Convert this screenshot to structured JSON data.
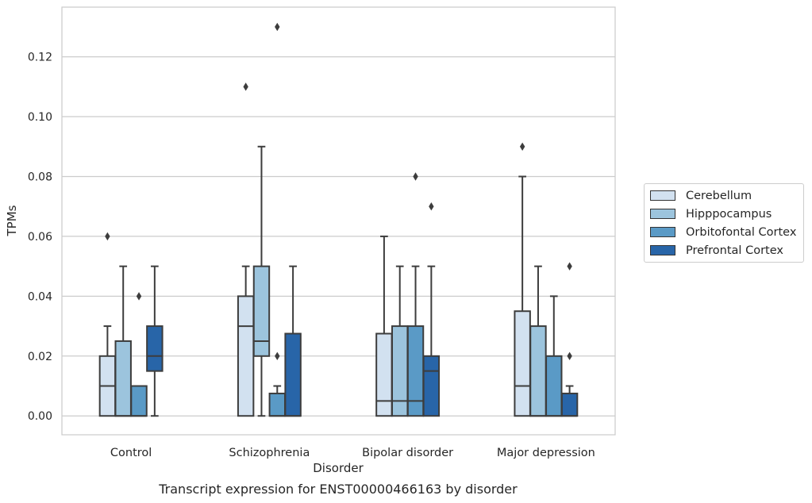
{
  "chart_data": {
    "type": "box",
    "title": "Transcript expression for ENST00000466163 by disorder",
    "xlabel": "Disorder",
    "ylabel": "TPMs",
    "ylim": [
      -0.0063,
      0.1366
    ],
    "yticks": [
      "0.00",
      "0.02",
      "0.04",
      "0.06",
      "0.08",
      "0.10",
      "0.12"
    ],
    "grid": true,
    "legend_placement": "right",
    "categories": [
      "Control",
      "Schizophrenia",
      "Bipolar disorder",
      "Major depression"
    ],
    "series": [
      {
        "name": "Cerebellum",
        "color": "#d2e1f0",
        "boxes": [
          {
            "q1": 0.0,
            "median": 0.01,
            "q3": 0.02,
            "whislo": 0.0,
            "whishi": 0.03,
            "fliers": [
              0.06
            ]
          },
          {
            "q1": 0.0,
            "median": 0.03,
            "q3": 0.04,
            "whislo": 0.0,
            "whishi": 0.05,
            "fliers": [
              0.11
            ]
          },
          {
            "q1": 0.0,
            "median": 0.005,
            "q3": 0.0275,
            "whislo": 0.0,
            "whishi": 0.06,
            "fliers": []
          },
          {
            "q1": 0.0,
            "median": 0.01,
            "q3": 0.035,
            "whislo": 0.0,
            "whishi": 0.08,
            "fliers": [
              0.09
            ]
          }
        ]
      },
      {
        "name": "Hipppocampus",
        "color": "#9cc4dd",
        "boxes": [
          {
            "q1": 0.0,
            "median": 0.0,
            "q3": 0.025,
            "whislo": 0.0,
            "whishi": 0.05,
            "fliers": []
          },
          {
            "q1": 0.02,
            "median": 0.025,
            "q3": 0.05,
            "whislo": 0.0,
            "whishi": 0.09,
            "fliers": []
          },
          {
            "q1": 0.0,
            "median": 0.005,
            "q3": 0.03,
            "whislo": 0.0,
            "whishi": 0.05,
            "fliers": []
          },
          {
            "q1": 0.0,
            "median": 0.0,
            "q3": 0.03,
            "whislo": 0.0,
            "whishi": 0.05,
            "fliers": []
          }
        ]
      },
      {
        "name": "Orbitofontal Cortex",
        "color": "#5a9ac6",
        "boxes": [
          {
            "q1": 0.0,
            "median": 0.0,
            "q3": 0.01,
            "whislo": 0.0,
            "whishi": 0.01,
            "fliers": [
              0.04
            ]
          },
          {
            "q1": 0.0,
            "median": 0.0,
            "q3": 0.0075,
            "whislo": 0.0,
            "whishi": 0.01,
            "fliers": [
              0.02,
              0.13
            ]
          },
          {
            "q1": 0.0,
            "median": 0.005,
            "q3": 0.03,
            "whislo": 0.0,
            "whishi": 0.05,
            "fliers": [
              0.08
            ]
          },
          {
            "q1": 0.0,
            "median": 0.0,
            "q3": 0.02,
            "whislo": 0.0,
            "whishi": 0.04,
            "fliers": []
          }
        ]
      },
      {
        "name": "Prefrontal Cortex",
        "color": "#2865a8",
        "boxes": [
          {
            "q1": 0.015,
            "median": 0.02,
            "q3": 0.03,
            "whislo": 0.0,
            "whishi": 0.05,
            "fliers": []
          },
          {
            "q1": 0.0,
            "median": 0.0,
            "q3": 0.0275,
            "whislo": 0.0,
            "whishi": 0.05,
            "fliers": []
          },
          {
            "q1": 0.0,
            "median": 0.015,
            "q3": 0.02,
            "whislo": 0.0,
            "whishi": 0.05,
            "fliers": [
              0.07
            ]
          },
          {
            "q1": 0.0,
            "median": 0.0,
            "q3": 0.0075,
            "whislo": 0.0,
            "whishi": 0.01,
            "fliers": [
              0.02,
              0.05
            ]
          }
        ]
      }
    ]
  }
}
